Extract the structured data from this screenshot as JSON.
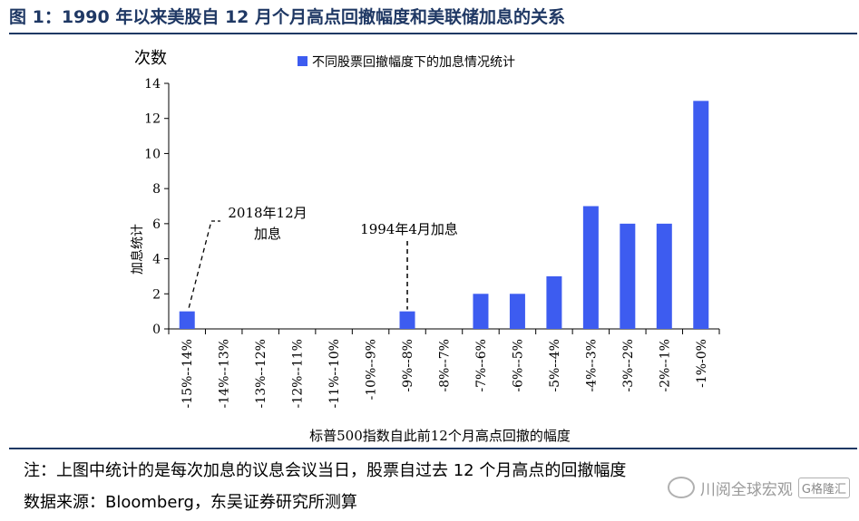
{
  "figure_title": "图 1：1990 年以来美股自 12 月个月高点回撤幅度和美联储加息的关系",
  "note": "注：上图中统计的是每次加息的议息会议当日，股票自过去 12 个月高点的回撤幅度",
  "source": "数据来源：Bloomberg，东吴证券研究所测算",
  "watermark": {
    "text": "川阅全球宏观",
    "logo": "G格隆汇"
  },
  "chart_data": {
    "type": "bar",
    "title": "",
    "ylabel_top": "次数",
    "ylabel": "加息统计",
    "xlabel": "标普500指数自此前12个月高点回撤的幅度",
    "legend": "不同股票回撤幅度下的加息情况统计",
    "legend_position": "top",
    "ylim": [
      0,
      14
    ],
    "yticks": [
      0,
      2,
      4,
      6,
      8,
      10,
      12,
      14
    ],
    "categories": [
      "-15%--14%",
      "-14%--13%",
      "-13%--12%",
      "-12%--11%",
      "-11%--10%",
      "-10%--9%",
      "-9%--8%",
      "-8%--7%",
      "-7%--6%",
      "-6%--5%",
      "-5%--4%",
      "-4%--3%",
      "-3%--2%",
      "-2%--1%",
      "-1%-0%"
    ],
    "values": [
      1,
      0,
      0,
      0,
      0,
      0,
      1,
      0,
      2,
      2,
      3,
      7,
      6,
      6,
      13
    ],
    "bar_color": "#3d5cf0",
    "grid": false,
    "annotations": [
      {
        "line1": "2018年12月",
        "line2": "加息",
        "category_index": 0
      },
      {
        "line1": "1994年4月加息",
        "line2": "",
        "category_index": 6
      }
    ]
  }
}
